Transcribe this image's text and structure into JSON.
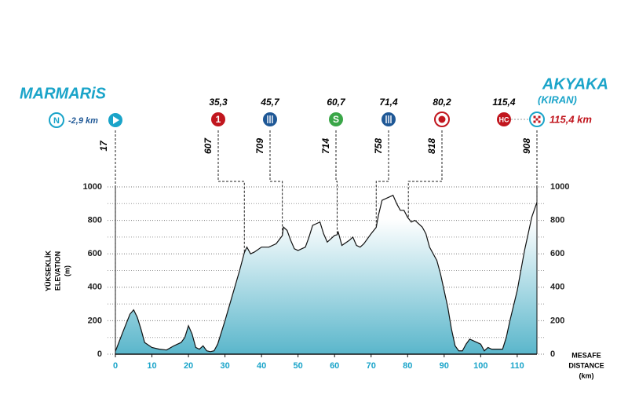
{
  "chart_data": {
    "type": "area",
    "start": {
      "name": "MARMARiS",
      "neutral_icon": "N",
      "neutral": {
        "value": -2.9,
        "label": "-2,9 km"
      },
      "elevation": 17
    },
    "finish": {
      "name": "AKYAKA",
      "subname": "(KIRAN)",
      "km": {
        "value": 115.4,
        "label": "115,4 km"
      },
      "elevation": 908
    },
    "markers": [
      {
        "km": {
          "value": 35.3,
          "label": "35,3"
        },
        "icon": "1",
        "kind": "climb",
        "color": "#c1161e",
        "elevation": 607
      },
      {
        "km": {
          "value": 45.7,
          "label": "45,7"
        },
        "kind": "feed",
        "color": "#1f5896",
        "elevation": 709
      },
      {
        "km": {
          "value": 60.7,
          "label": "60,7"
        },
        "icon": "S",
        "kind": "sprint",
        "color": "#3aa648",
        "elevation": 714
      },
      {
        "km": {
          "value": 71.4,
          "label": "71,4"
        },
        "kind": "feed",
        "color": "#1f5896",
        "elevation": 758
      },
      {
        "km": {
          "value": 80.2,
          "label": "80,2"
        },
        "kind": "technical",
        "color": "#c1161e",
        "elevation": 818
      },
      {
        "km": {
          "value": 115.4,
          "label": "115,4"
        },
        "icon": "HC",
        "kind": "climb",
        "color": "#c1161e"
      }
    ],
    "y_label": [
      "YÜKSEKLİK",
      "ELEVATION",
      "(m)"
    ],
    "x_label": [
      "MESAFE",
      "DISTANCE",
      "(km)"
    ],
    "x": [
      0,
      2,
      4,
      5,
      6,
      7,
      8,
      10,
      12,
      14,
      16,
      18,
      19,
      20,
      21,
      22,
      23,
      24,
      25,
      26,
      27,
      28,
      30,
      32,
      34,
      35.3,
      36,
      37,
      38,
      40,
      42,
      44,
      45.7,
      46,
      47,
      48,
      49,
      50,
      52,
      53,
      54,
      55,
      56,
      57,
      58,
      59,
      60,
      60.7,
      61,
      62,
      64,
      65,
      66,
      67,
      68,
      70,
      71.4,
      72,
      73,
      75,
      76,
      77,
      78,
      79,
      80,
      81,
      82,
      84,
      85,
      86,
      88,
      89,
      90,
      91,
      92,
      93,
      94,
      95,
      96,
      97,
      98,
      99,
      100,
      101,
      102,
      103,
      104,
      106,
      107,
      108,
      110,
      112,
      114,
      115.4
    ],
    "values": [
      17,
      130,
      240,
      265,
      220,
      150,
      70,
      40,
      30,
      25,
      50,
      70,
      100,
      170,
      120,
      40,
      30,
      50,
      20,
      15,
      20,
      60,
      200,
      350,
      500,
      607,
      640,
      600,
      610,
      640,
      640,
      660,
      709,
      760,
      740,
      680,
      630,
      620,
      640,
      700,
      770,
      780,
      790,
      720,
      670,
      690,
      710,
      714,
      730,
      650,
      680,
      700,
      650,
      640,
      660,
      720,
      758,
      830,
      920,
      940,
      950,
      900,
      860,
      860,
      818,
      790,
      800,
      760,
      720,
      640,
      560,
      480,
      380,
      280,
      150,
      50,
      20,
      20,
      60,
      90,
      80,
      70,
      60,
      20,
      40,
      30,
      30,
      30,
      100,
      200,
      380,
      620,
      820,
      908
    ],
    "color": "#5ab6cb",
    "xlim": [
      0,
      115.4
    ],
    "ylim": [
      0,
      1000
    ],
    "xticks": [
      0,
      10,
      20,
      30,
      40,
      50,
      60,
      70,
      80,
      90,
      100,
      110
    ],
    "yticks": [
      0,
      200,
      400,
      600,
      800,
      1000
    ],
    "minor_yticks": [
      100,
      300,
      500,
      700,
      900
    ],
    "grid": true
  }
}
